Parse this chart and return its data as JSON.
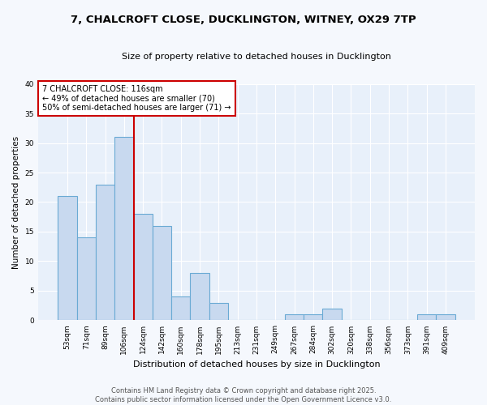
{
  "title_line1": "7, CHALCROFT CLOSE, DUCKLINGTON, WITNEY, OX29 7TP",
  "title_line2": "Size of property relative to detached houses in Ducklington",
  "xlabel": "Distribution of detached houses by size in Ducklington",
  "ylabel": "Number of detached properties",
  "categories": [
    "53sqm",
    "71sqm",
    "89sqm",
    "106sqm",
    "124sqm",
    "142sqm",
    "160sqm",
    "178sqm",
    "195sqm",
    "213sqm",
    "231sqm",
    "249sqm",
    "267sqm",
    "284sqm",
    "302sqm",
    "320sqm",
    "338sqm",
    "356sqm",
    "373sqm",
    "391sqm",
    "409sqm"
  ],
  "values": [
    21,
    14,
    23,
    31,
    18,
    16,
    4,
    8,
    3,
    0,
    0,
    0,
    1,
    1,
    2,
    0,
    0,
    0,
    0,
    1,
    1
  ],
  "bar_color": "#c8d9ef",
  "bar_edgecolor": "#6aaad4",
  "vline_x": 3.5,
  "annotation_text_line1": "7 CHALCROFT CLOSE: 116sqm",
  "annotation_text_line2": "← 49% of detached houses are smaller (70)",
  "annotation_text_line3": "50% of semi-detached houses are larger (71) →",
  "annotation_box_color": "white",
  "annotation_box_edgecolor": "#cc0000",
  "vline_color": "#cc0000",
  "ylim": [
    0,
    40
  ],
  "yticks": [
    0,
    5,
    10,
    15,
    20,
    25,
    30,
    35,
    40
  ],
  "footer_line1": "Contains HM Land Registry data © Crown copyright and database right 2025.",
  "footer_line2": "Contains public sector information licensed under the Open Government Licence v3.0.",
  "bg_color": "#f5f8fd",
  "plot_bg_color": "#e8f0fa",
  "grid_color": "#ffffff",
  "title_fontsize": 9.5,
  "subtitle_fontsize": 8,
  "tick_fontsize": 6.5,
  "ylabel_fontsize": 7.5,
  "xlabel_fontsize": 8,
  "annotation_fontsize": 7,
  "footer_fontsize": 6
}
